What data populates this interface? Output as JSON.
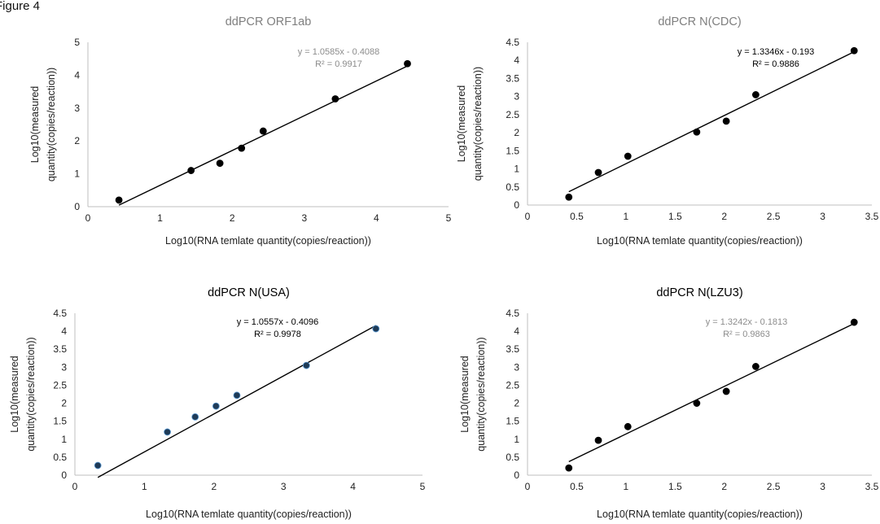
{
  "figure_label": "Figure 4",
  "chart_data": [
    {
      "type": "scatter",
      "title": "ddPCR ORF1ab",
      "title_color": "#7f7f7f",
      "xlabel": "Log10(RNA temlate quantity(copies/reaction))",
      "ylabel": [
        "Log10(measured",
        "quantity(copies/reaction))"
      ],
      "xlim": [
        0,
        5
      ],
      "ylim": [
        0,
        5
      ],
      "xticks": [
        "0",
        "1",
        "2",
        "3",
        "4",
        "5"
      ],
      "yticks": [
        "0",
        "1",
        "2",
        "3",
        "4",
        "5"
      ],
      "series": [
        {
          "x": [
            0.43,
            1.43,
            1.83,
            2.13,
            2.43,
            3.43,
            4.43
          ],
          "y": [
            0.2,
            1.1,
            1.32,
            1.78,
            2.3,
            3.28,
            4.35
          ]
        }
      ],
      "trendline": {
        "slope": 1.0585,
        "intercept": -0.4088,
        "x_range": [
          0.43,
          4.43
        ]
      },
      "equation": "y = 1.0585x - 0.4088",
      "r_squared": "R² = 0.9917",
      "equation_color": "#8c8c8c",
      "marker_color": "#000000"
    },
    {
      "type": "scatter",
      "title": "ddPCR N(CDC)",
      "title_color": "#7f7f7f",
      "xlabel": "Log10(RNA temlate quantity(copies/reaction))",
      "ylabel": [
        "Log10(measured",
        "quantity(copies/reaction))"
      ],
      "xlim": [
        0,
        3.5
      ],
      "ylim": [
        0,
        4.5
      ],
      "xticks": [
        "0",
        "0.5",
        "1",
        "1.5",
        "2",
        "2.5",
        "3",
        "3.5"
      ],
      "yticks": [
        "0",
        "0.5",
        "1",
        "1.5",
        "2",
        "2.5",
        "3",
        "3.5",
        "4",
        "4.5"
      ],
      "series": [
        {
          "x": [
            0.42,
            0.72,
            1.02,
            1.72,
            2.02,
            2.32,
            3.32
          ],
          "y": [
            0.22,
            0.9,
            1.35,
            2.02,
            2.32,
            3.05,
            4.27
          ]
        }
      ],
      "trendline": {
        "slope": 1.3346,
        "intercept": -0.193,
        "x_range": [
          0.42,
          3.32
        ]
      },
      "equation": "y = 1.3346x - 0.193",
      "r_squared": "R² = 0.9886",
      "equation_color": "#000000",
      "marker_color": "#000000"
    },
    {
      "type": "scatter",
      "title": "ddPCR N(USA)",
      "title_color": "#000000",
      "xlabel": "Log10(RNA temlate quantity(copies/reaction))",
      "ylabel": [
        "Log10(measured",
        "quantity(copies/reaction))"
      ],
      "xlim": [
        0,
        5
      ],
      "ylim": [
        0,
        4.5
      ],
      "xticks": [
        "0",
        "1",
        "2",
        "3",
        "4",
        "5"
      ],
      "yticks": [
        "0",
        "0.5",
        "1",
        "1.5",
        "2",
        "2.5",
        "3",
        "3.5",
        "4",
        "4.5"
      ],
      "series": [
        {
          "x": [
            0.33,
            1.33,
            1.73,
            2.03,
            2.33,
            3.33,
            4.33
          ],
          "y": [
            0.27,
            1.2,
            1.62,
            1.92,
            2.22,
            3.05,
            4.07
          ]
        }
      ],
      "trendline": {
        "slope": 1.0557,
        "intercept": -0.4096,
        "x_range": [
          0.33,
          4.33
        ]
      },
      "equation": "y = 1.0557x - 0.4096",
      "r_squared": "R² = 0.9978",
      "equation_color": "#000000",
      "marker_color": "#1f3b57"
    },
    {
      "type": "scatter",
      "title": "ddPCR N(LZU3)",
      "title_color": "#000000",
      "xlabel": "Log10(RNA temlate quantity(copies/reaction))",
      "ylabel": [
        "Log10(measured",
        "quantity(copies/reaction))"
      ],
      "xlim": [
        0,
        3.5
      ],
      "ylim": [
        0,
        4.5
      ],
      "xticks": [
        "0",
        "0.5",
        "1",
        "1.5",
        "2",
        "2.5",
        "3",
        "3.5"
      ],
      "yticks": [
        "0",
        "0.5",
        "1",
        "1.5",
        "2",
        "2.5",
        "3",
        "3.5",
        "4",
        "4.5"
      ],
      "series": [
        {
          "x": [
            0.42,
            0.72,
            1.02,
            1.72,
            2.02,
            2.32,
            3.32
          ],
          "y": [
            0.2,
            0.97,
            1.35,
            2.0,
            2.33,
            3.02,
            4.25
          ]
        }
      ],
      "trendline": {
        "slope": 1.3242,
        "intercept": -0.1813,
        "x_range": [
          0.42,
          3.32
        ]
      },
      "equation": "y = 1.3242x - 0.1813",
      "r_squared": "R² = 0.9863",
      "equation_color": "#8c8c8c",
      "marker_color": "#000000"
    }
  ]
}
